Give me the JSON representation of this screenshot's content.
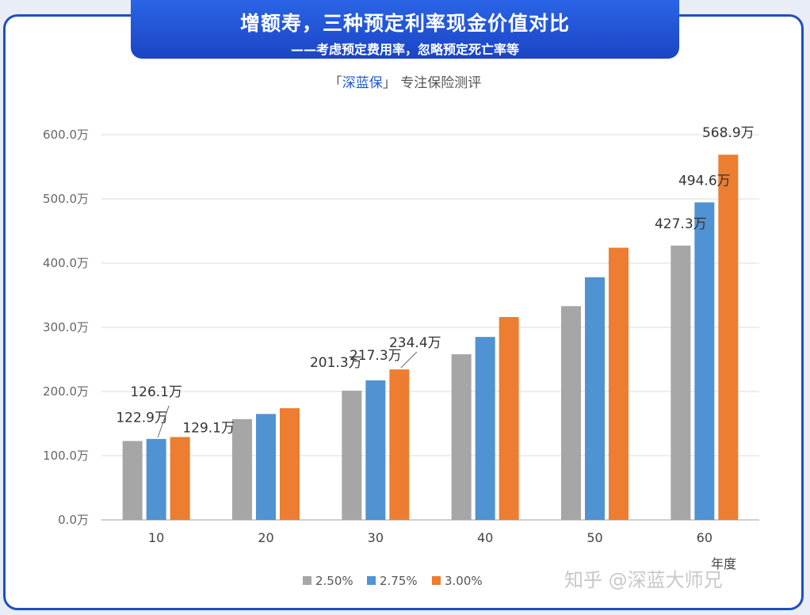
{
  "header": {
    "title": "增额寿，三种预定利率现金价值对比",
    "subtitle": "——考虑预定费用率，忽略预定死亡率等"
  },
  "brand": {
    "open": "「",
    "name": "深蓝保",
    "close": "」",
    "tagline": "专注保险测评"
  },
  "watermark": "知乎 @深蓝大师兄",
  "colors": {
    "s1": "#a6a6a6",
    "s2": "#4f93d2",
    "s3": "#ec7d31",
    "frame": "#1e4fc1",
    "banner": "#1b45c4"
  },
  "chart_data": {
    "type": "bar",
    "categories": [
      "10",
      "20",
      "30",
      "40",
      "50",
      "60"
    ],
    "xlabel": "年度",
    "ylabel": "",
    "ylim": [
      0,
      600
    ],
    "yticks": [
      "0.0万",
      "100.0万",
      "200.0万",
      "300.0万",
      "400.0万",
      "500.0万",
      "600.0万"
    ],
    "unit": "万",
    "grid": true,
    "legend": "bottom",
    "series": [
      {
        "name": "2.50%",
        "values": [
          122.9,
          157,
          201.3,
          258,
          333,
          427.3
        ]
      },
      {
        "name": "2.75%",
        "values": [
          126.1,
          165,
          217.3,
          285,
          378,
          494.6
        ]
      },
      {
        "name": "3.00%",
        "values": [
          129.1,
          174,
          234.4,
          316,
          424,
          568.9
        ]
      }
    ],
    "data_labels": [
      {
        "text": "122.9万",
        "series": 0,
        "category": 0
      },
      {
        "text": "126.1万",
        "series": 1,
        "category": 0
      },
      {
        "text": "129.1万",
        "series": 2,
        "category": 0
      },
      {
        "text": "201.3万",
        "series": 0,
        "category": 2
      },
      {
        "text": "217.3万",
        "series": 1,
        "category": 2
      },
      {
        "text": "234.4万",
        "series": 2,
        "category": 2
      },
      {
        "text": "427.3万",
        "series": 0,
        "category": 5
      },
      {
        "text": "494.6万",
        "series": 1,
        "category": 5
      },
      {
        "text": "568.9万",
        "series": 2,
        "category": 5
      }
    ]
  }
}
